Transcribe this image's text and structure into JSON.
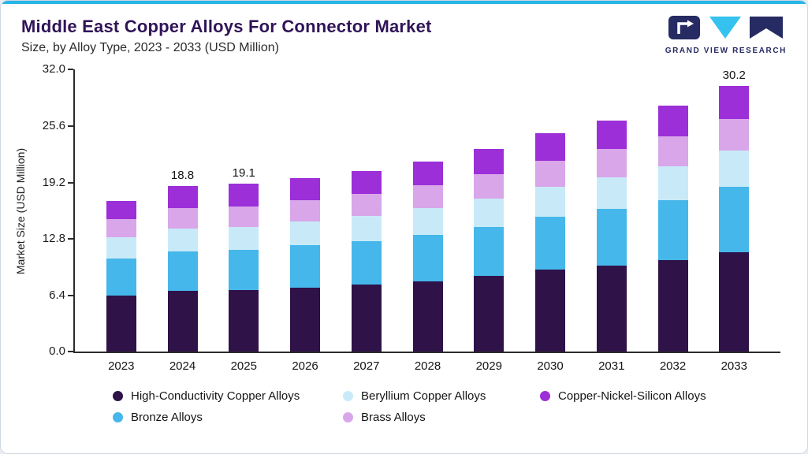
{
  "header": {
    "title": "Middle East Copper Alloys For Connector Market",
    "subtitle": "Size, by Alloy Type, 2023 - 2033 (USD Million)",
    "logo_text": "GRAND VIEW RESEARCH"
  },
  "colors": {
    "accent_topbar": "#29b5e8",
    "title_text": "#301457",
    "logo_navy": "#262b63",
    "logo_cyan": "#35c2ee"
  },
  "chart_data": {
    "type": "bar",
    "stacked": true,
    "title": "Middle East Copper Alloys For Connector Market Size, by Alloy Type, 2023 - 2033 (USD Million)",
    "categories": [
      "2023",
      "2024",
      "2025",
      "2026",
      "2027",
      "2028",
      "2029",
      "2030",
      "2031",
      "2032",
      "2033"
    ],
    "series": [
      {
        "name": "High-Conductivity Copper Alloys",
        "color": "#2e1248",
        "values": [
          6.4,
          6.9,
          7.0,
          7.3,
          7.6,
          8.0,
          8.6,
          9.3,
          9.8,
          10.4,
          11.3
        ]
      },
      {
        "name": "Bronze Alloys",
        "color": "#45b7ea",
        "values": [
          4.2,
          4.5,
          4.6,
          4.8,
          5.0,
          5.3,
          5.6,
          6.0,
          6.4,
          6.8,
          7.4
        ]
      },
      {
        "name": "Beryllium Copper Alloys",
        "color": "#c8eaf8",
        "values": [
          2.4,
          2.6,
          2.6,
          2.7,
          2.8,
          3.0,
          3.2,
          3.4,
          3.6,
          3.8,
          4.1
        ]
      },
      {
        "name": "Brass Alloys",
        "color": "#d8a6e9",
        "values": [
          2.1,
          2.3,
          2.3,
          2.4,
          2.5,
          2.6,
          2.8,
          3.0,
          3.2,
          3.4,
          3.6
        ]
      },
      {
        "name": "Copper-Nickel-Silicon Alloys",
        "color": "#9c2fd8",
        "values": [
          2.0,
          2.5,
          2.6,
          2.5,
          2.6,
          2.7,
          2.8,
          3.1,
          3.2,
          3.5,
          3.8
        ]
      }
    ],
    "totals": [
      17.1,
      18.8,
      19.1,
      19.7,
      20.5,
      21.6,
      23.0,
      24.8,
      26.2,
      27.9,
      30.2
    ],
    "bar_labels": {
      "2024": "18.8",
      "2025": "19.1",
      "2033": "30.2"
    },
    "ylabel": "Market Size (USD Million)",
    "yticks": [
      "32.0",
      "25.6",
      "19.2",
      "12.8",
      "6.4",
      "0.0"
    ],
    "ylim": [
      0,
      32
    ],
    "grid": false,
    "legend_position": "bottom",
    "legend": [
      {
        "label": "High-Conductivity Copper Alloys",
        "color": "#2e1248"
      },
      {
        "label": "Beryllium Copper Alloys",
        "color": "#c8eaf8"
      },
      {
        "label": "Copper-Nickel-Silicon Alloys",
        "color": "#9c2fd8"
      },
      {
        "label": "Bronze Alloys",
        "color": "#45b7ea"
      },
      {
        "label": "Brass Alloys",
        "color": "#d8a6e9"
      }
    ]
  }
}
